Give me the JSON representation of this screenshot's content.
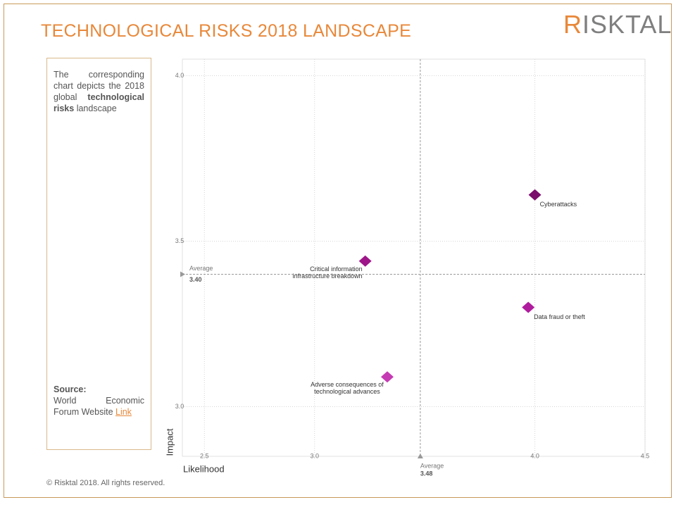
{
  "header": {
    "title": "TECHNOLOGICAL RISKS 2018 LANDSCAPE",
    "logo": "RISKTAL"
  },
  "sidebar": {
    "description_before": "The corresponding chart depicts the 2018 global",
    "description_bold": "technological risks",
    "description_after": "landscape",
    "source_label": "Source:",
    "source_text": "World Economic Forum Website",
    "source_link": "Link"
  },
  "footer": "© Risktal 2018. All rights reserved.",
  "chart_data": {
    "type": "scatter",
    "x_label": "Likelihood",
    "y_label": "Impact",
    "xlim": [
      2.4,
      4.5
    ],
    "ylim": [
      2.85,
      4.05
    ],
    "xticks": [
      2.5,
      {
        "value": 3.0,
        "label": "3.0"
      },
      {
        "value": 4.0,
        "label": "4.0"
      },
      4.5
    ],
    "yticks": [
      {
        "value": 3.0,
        "label": "3.0"
      },
      3.5,
      {
        "value": 4.0,
        "label": "4.0"
      }
    ],
    "grid": true,
    "points": [
      {
        "name": "Cyberattacks",
        "x": 4.0,
        "y": 3.64,
        "color": "#7a0c6c"
      },
      {
        "name": "Critical information infrastructure breakdown",
        "x": 3.23,
        "y": 3.44,
        "color": "#9e1689"
      },
      {
        "name": "Data fraud or theft",
        "x": 3.97,
        "y": 3.3,
        "color": "#b01c9e"
      },
      {
        "name": "Adverse consequences of technological advances",
        "x": 3.33,
        "y": 3.09,
        "color": "#c53bb3"
      }
    ],
    "reference_lines": [
      {
        "axis": "y",
        "label": "Average",
        "value": 3.4,
        "value_label": "3.40"
      },
      {
        "axis": "x",
        "label": "Average",
        "value": 3.48
      }
    ]
  }
}
